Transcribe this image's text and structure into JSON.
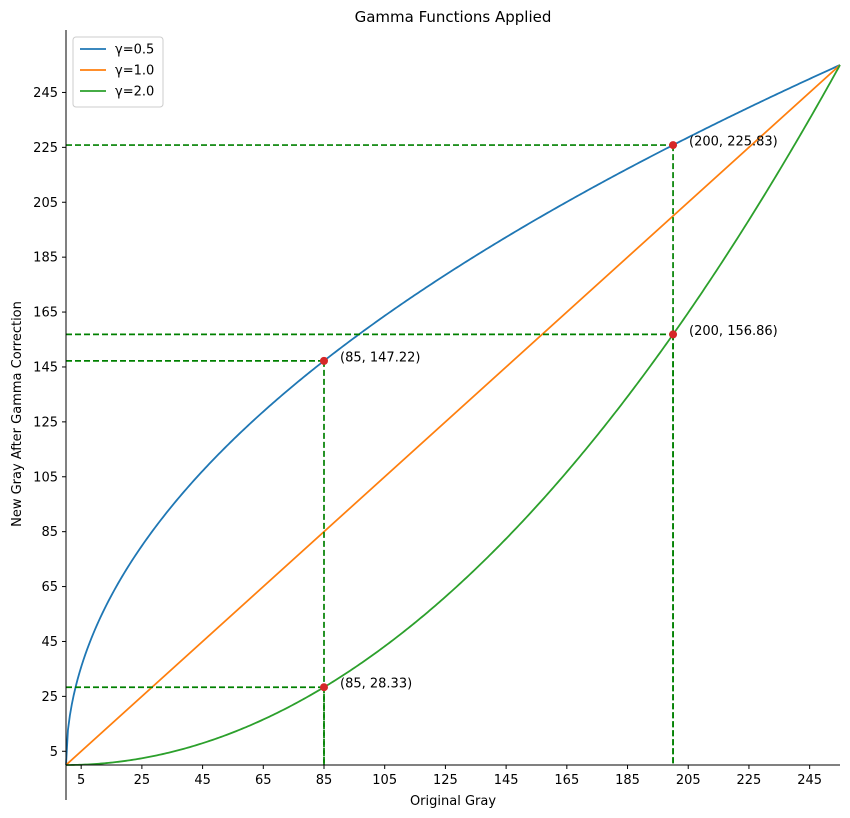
{
  "chart_data": {
    "type": "line",
    "title": "Gamma Functions Applied",
    "xlabel": "Original Gray",
    "ylabel": "New Gray After Gamma Correction",
    "xlim": [
      0,
      255
    ],
    "ylim": [
      0,
      255
    ],
    "xticks": [
      5,
      25,
      45,
      65,
      85,
      105,
      125,
      145,
      165,
      185,
      205,
      225,
      245
    ],
    "yticks": [
      5,
      25,
      45,
      65,
      85,
      105,
      125,
      145,
      165,
      185,
      205,
      225,
      245
    ],
    "legend_placement": "top-left",
    "series": [
      {
        "name": "γ=0.5",
        "gamma": 0.5,
        "color": "#1f77b4"
      },
      {
        "name": "γ=1.0",
        "gamma": 1.0,
        "color": "#ff7f0e"
      },
      {
        "name": "γ=2.0",
        "gamma": 2.0,
        "color": "#2ca02c"
      }
    ],
    "highlight_points": [
      {
        "x": 200,
        "y": 225.83,
        "label": "(200, 225.83)"
      },
      {
        "x": 200,
        "y": 156.86,
        "label": "(200, 156.86)"
      },
      {
        "x": 85,
        "y": 147.22,
        "label": "(85, 147.22)"
      },
      {
        "x": 85,
        "y": 28.33,
        "label": "(85, 28.33)"
      }
    ],
    "colors": {
      "guide": "#008000",
      "point": "#d62728"
    }
  }
}
